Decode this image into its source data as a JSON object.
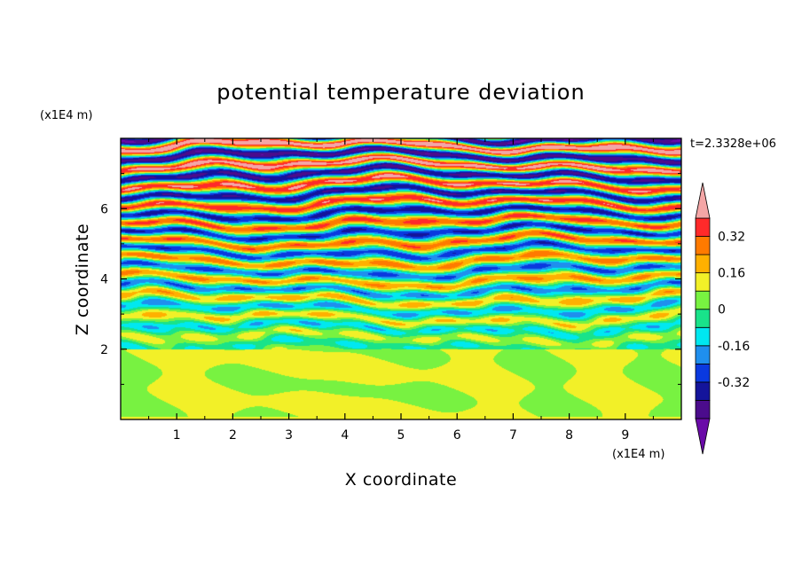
{
  "chart_data": {
    "type": "heatmap",
    "title": "potential temperature deviation",
    "xlabel": "X coordinate",
    "ylabel": "Z coordinate",
    "x_unit": "(x1E4 m)",
    "y_unit": "(x1E4 m)",
    "time_label": "t=2.3328e+06",
    "xlim": [
      0,
      10
    ],
    "ylim": [
      0,
      8
    ],
    "x_ticks": [
      "1",
      "2",
      "3",
      "4",
      "5",
      "6",
      "7",
      "8",
      "9"
    ],
    "y_ticks": [
      "2",
      "4",
      "6"
    ],
    "colorbar": {
      "levels": [
        -0.48,
        -0.4,
        -0.32,
        -0.24,
        -0.16,
        -0.08,
        0,
        0.08,
        0.16,
        0.24,
        0.32,
        0.4,
        0.48
      ],
      "tick_labels": [
        "0.32",
        "0.16",
        "0",
        "-0.16",
        "-0.32"
      ],
      "tick_values": [
        0.32,
        0.16,
        0,
        -0.16,
        -0.32
      ],
      "colors_low_to_high": [
        "#6a0aa8",
        "#4b0c8c",
        "#14149b",
        "#0a39df",
        "#1f8fee",
        "#00e8f0",
        "#19e38a",
        "#78f241",
        "#f2f028",
        "#ffb000",
        "#ff7a00",
        "#ff2a2a",
        "#f4a6a6"
      ],
      "under_color": "#6a0aa8",
      "over_color": "#f4a6a6"
    },
    "structure": {
      "uniform_layer_below_z": 2.0,
      "uniform_layer_value_range": [
        0,
        0.08
      ],
      "layered_bands_z_range": [
        2.0,
        8.0
      ]
    }
  }
}
